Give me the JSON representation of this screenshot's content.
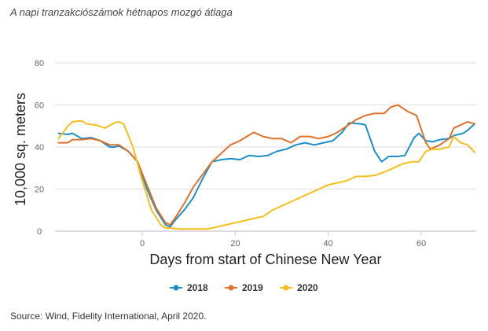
{
  "title": "A napi tranzakciószámok hétnapos mozgó átlaga",
  "source": "Source: Wind, Fidelity International, April 2020.",
  "chart_data": {
    "type": "line",
    "title": "A napi tranzakciószámok hétnapos mozgó átlaga",
    "xlabel": "Days from start of Chinese New Year",
    "ylabel": "10,000 sq. meters",
    "xlim": [
      -18,
      72
    ],
    "ylim": [
      0,
      80
    ],
    "xticks": [
      0,
      20,
      40,
      60
    ],
    "yticks": [
      0,
      20,
      40,
      60,
      80
    ],
    "grid": true,
    "legend": "bottom-center",
    "series": [
      {
        "name": "2018",
        "color": "#1b8fc7",
        "x": [
          -18,
          -16,
          -15,
          -13,
          -11,
          -9,
          -7,
          -6,
          -5,
          -3,
          -1,
          1,
          3,
          5,
          6,
          7,
          9,
          11,
          13,
          15,
          17,
          19,
          21,
          23,
          25,
          27,
          29,
          31,
          33,
          35,
          37,
          39,
          41,
          43,
          44.5,
          47,
          48,
          50,
          51.5,
          53,
          55,
          56.5,
          58.5,
          59.5,
          61,
          62.5,
          64,
          66,
          67,
          69,
          70,
          71.5
        ],
        "y": [
          46.5,
          46,
          46.5,
          44,
          44.5,
          43,
          40,
          40,
          40.5,
          38,
          33,
          20,
          10,
          3,
          2,
          5,
          10,
          16,
          25,
          33,
          34,
          34.5,
          34,
          36,
          35.5,
          36,
          38,
          39,
          41,
          42,
          41,
          42,
          43,
          47,
          51.5,
          51,
          50.5,
          38,
          33,
          35.5,
          35.5,
          36,
          44.5,
          46.5,
          43,
          42.5,
          43.5,
          44,
          45.5,
          46.5,
          48,
          51
        ]
      },
      {
        "name": "2019",
        "color": "#e0702a",
        "x": [
          -18,
          -16,
          -15,
          -13,
          -11,
          -9,
          -7,
          -5,
          -3,
          -1,
          1,
          3,
          5,
          6,
          7,
          9,
          11,
          13,
          15,
          17,
          19,
          21,
          22.5,
          24,
          26,
          28,
          30,
          32,
          34,
          36,
          38,
          40,
          42,
          44,
          46,
          48,
          50,
          52,
          53.5,
          55,
          57,
          59,
          61,
          62,
          64,
          66,
          67,
          69,
          70,
          71.5
        ],
        "y": [
          42,
          42,
          43.5,
          43.5,
          44,
          43,
          41,
          41,
          38,
          33,
          22,
          11,
          4,
          3,
          6,
          13,
          21,
          27,
          33,
          37,
          41,
          43,
          45,
          47,
          45,
          44,
          44,
          42,
          45,
          45,
          44,
          45,
          47,
          50,
          53,
          55,
          56,
          56,
          59,
          60,
          57,
          55,
          42,
          39,
          41,
          44,
          49,
          51,
          52,
          51
        ]
      },
      {
        "name": "2020",
        "color": "#f5be1a",
        "x": [
          -18,
          -16,
          -15,
          -13,
          -12,
          -10,
          -8,
          -6,
          -5,
          -4,
          -2,
          0,
          2,
          4,
          5,
          6,
          8,
          10,
          12,
          14,
          16,
          18,
          20,
          22,
          24,
          26,
          28,
          30,
          32,
          34,
          36,
          38,
          40,
          42,
          44,
          46,
          48,
          50,
          52,
          54,
          56,
          58,
          59.5,
          61,
          62.5,
          64,
          66,
          67,
          68.5,
          70,
          71.5
        ],
        "y": [
          44,
          50,
          52,
          52.5,
          51,
          50.5,
          49,
          51.5,
          52,
          51,
          40,
          24,
          10,
          3,
          1.5,
          1.5,
          1,
          1,
          1,
          1,
          2,
          3,
          4,
          5,
          6,
          7,
          10,
          12,
          14,
          16,
          18,
          20,
          22,
          23,
          24,
          26,
          26,
          26.5,
          28,
          30,
          32,
          33,
          33,
          38,
          39,
          39,
          40,
          45,
          42,
          41,
          37.5
        ]
      }
    ]
  }
}
